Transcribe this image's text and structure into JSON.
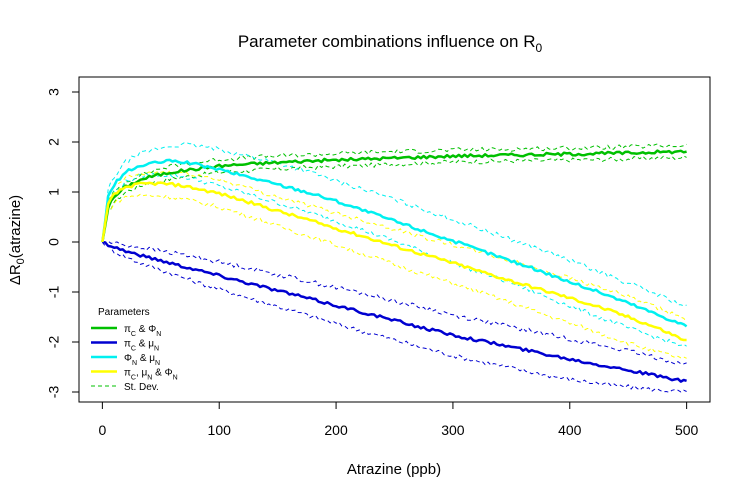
{
  "chart_data": {
    "type": "line",
    "title": "Parameter combinations influence on R",
    "title_subscript": "0",
    "xlabel": "Atrazine (ppb)",
    "ylabel_prefix": "ΔR",
    "ylabel_subscript": "0",
    "ylabel_suffix": "(atrazine)",
    "xlim": [
      -20,
      520
    ],
    "ylim": [
      -3.2,
      3.3
    ],
    "x_ticks": [
      0,
      100,
      200,
      300,
      400,
      500
    ],
    "y_ticks": [
      -3,
      -2,
      -1,
      0,
      1,
      2,
      3
    ],
    "x_tick_labels": [
      "0",
      "100",
      "200",
      "300",
      "400",
      "500"
    ],
    "y_tick_labels": [
      "-3",
      "-2",
      "-1",
      "0",
      "1",
      "2",
      "3"
    ],
    "grid": false,
    "legend": {
      "title": "Parameters",
      "position": "bottom-left",
      "entries": [
        {
          "parts": [
            [
              "π",
              ""
            ],
            [
              "C",
              "sub"
            ],
            [
              " & Φ",
              ""
            ],
            [
              "N",
              "sub"
            ]
          ],
          "color": "#00c000",
          "style": "solid"
        },
        {
          "parts": [
            [
              "π",
              ""
            ],
            [
              "C",
              "sub"
            ],
            [
              " & μ",
              ""
            ],
            [
              "N",
              "sub"
            ]
          ],
          "color": "#0000d0",
          "style": "solid"
        },
        {
          "parts": [
            [
              "Φ",
              ""
            ],
            [
              "N",
              "sub"
            ],
            [
              " & μ",
              ""
            ],
            [
              "N",
              "sub"
            ]
          ],
          "color": "#00f0f0",
          "style": "solid"
        },
        {
          "parts": [
            [
              "π",
              ""
            ],
            [
              "C",
              "sub"
            ],
            [
              ", μ",
              ""
            ],
            [
              "N",
              "sub"
            ],
            [
              " & Φ",
              ""
            ],
            [
              "N",
              "sub"
            ]
          ],
          "color": "#ffff00",
          "style": "solid"
        },
        {
          "parts": [
            [
              "St. Dev.",
              ""
            ]
          ],
          "color": "#00c000",
          "style": "dashed"
        }
      ]
    },
    "x": [
      0,
      5,
      10,
      20,
      30,
      40,
      50,
      60,
      70,
      80,
      100,
      125,
      150,
      175,
      200,
      225,
      250,
      275,
      300,
      325,
      350,
      375,
      400,
      425,
      450,
      475,
      500
    ],
    "series": [
      {
        "name": "πC & ΦN",
        "color": "#00c000",
        "values": [
          0,
          0.7,
          0.9,
          1.1,
          1.22,
          1.3,
          1.35,
          1.4,
          1.43,
          1.46,
          1.52,
          1.56,
          1.59,
          1.62,
          1.64,
          1.66,
          1.68,
          1.7,
          1.72,
          1.73,
          1.74,
          1.75,
          1.76,
          1.77,
          1.78,
          1.8,
          1.81
        ],
        "lower": [
          0,
          0.6,
          0.8,
          1.0,
          1.1,
          1.18,
          1.22,
          1.27,
          1.3,
          1.33,
          1.39,
          1.43,
          1.46,
          1.49,
          1.51,
          1.53,
          1.56,
          1.58,
          1.6,
          1.61,
          1.62,
          1.63,
          1.64,
          1.65,
          1.66,
          1.68,
          1.69
        ],
        "upper": [
          0,
          0.8,
          1.0,
          1.2,
          1.32,
          1.4,
          1.47,
          1.52,
          1.56,
          1.59,
          1.65,
          1.69,
          1.72,
          1.74,
          1.77,
          1.79,
          1.81,
          1.82,
          1.84,
          1.85,
          1.86,
          1.87,
          1.88,
          1.89,
          1.9,
          1.92,
          1.93
        ]
      },
      {
        "name": "πC & μN",
        "color": "#0000d0",
        "values": [
          0,
          -0.05,
          -0.1,
          -0.18,
          -0.25,
          -0.31,
          -0.37,
          -0.43,
          -0.49,
          -0.55,
          -0.67,
          -0.82,
          -0.97,
          -1.12,
          -1.27,
          -1.42,
          -1.57,
          -1.72,
          -1.86,
          -1.98,
          -2.1,
          -2.22,
          -2.34,
          -2.45,
          -2.56,
          -2.68,
          -2.8
        ],
        "lower": [
          0,
          -0.1,
          -0.18,
          -0.3,
          -0.4,
          -0.48,
          -0.56,
          -0.64,
          -0.72,
          -0.8,
          -0.94,
          -1.12,
          -1.29,
          -1.46,
          -1.63,
          -1.8,
          -1.96,
          -2.12,
          -2.27,
          -2.4,
          -2.52,
          -2.64,
          -2.75,
          -2.83,
          -2.9,
          -2.96,
          -3.0
        ],
        "upper": [
          0,
          0.0,
          -0.02,
          -0.06,
          -0.1,
          -0.14,
          -0.18,
          -0.22,
          -0.26,
          -0.3,
          -0.4,
          -0.52,
          -0.65,
          -0.78,
          -0.91,
          -1.04,
          -1.18,
          -1.32,
          -1.46,
          -1.58,
          -1.7,
          -1.82,
          -1.94,
          -2.06,
          -2.18,
          -2.32,
          -2.45
        ]
      },
      {
        "name": "ΦN & μN",
        "color": "#00f0f0",
        "values": [
          0,
          0.9,
          1.15,
          1.4,
          1.5,
          1.56,
          1.6,
          1.62,
          1.6,
          1.55,
          1.45,
          1.3,
          1.15,
          1.0,
          0.82,
          0.62,
          0.42,
          0.22,
          0.02,
          -0.18,
          -0.38,
          -0.58,
          -0.8,
          -1.0,
          -1.22,
          -1.45,
          -1.68
        ],
        "lower": [
          0,
          0.78,
          1.0,
          1.2,
          1.3,
          1.35,
          1.35,
          1.33,
          1.3,
          1.25,
          1.12,
          0.95,
          0.78,
          0.6,
          0.42,
          0.22,
          0.02,
          -0.2,
          -0.42,
          -0.62,
          -0.82,
          -1.05,
          -1.28,
          -1.5,
          -1.72,
          -1.92,
          -2.1
        ],
        "upper": [
          0,
          1.05,
          1.3,
          1.6,
          1.75,
          1.82,
          1.88,
          1.92,
          1.95,
          1.93,
          1.85,
          1.72,
          1.58,
          1.42,
          1.22,
          1.04,
          0.85,
          0.65,
          0.45,
          0.25,
          0.05,
          -0.15,
          -0.37,
          -0.6,
          -0.82,
          -1.05,
          -1.3
        ]
      },
      {
        "name": "πC, μN & ΦN",
        "color": "#ffff00",
        "values": [
          0,
          0.75,
          0.95,
          1.1,
          1.15,
          1.17,
          1.17,
          1.15,
          1.12,
          1.07,
          0.97,
          0.8,
          0.62,
          0.45,
          0.27,
          0.1,
          -0.08,
          -0.25,
          -0.42,
          -0.6,
          -0.78,
          -0.95,
          -1.12,
          -1.3,
          -1.5,
          -1.72,
          -1.98
        ],
        "lower": [
          0,
          0.6,
          0.78,
          0.9,
          0.93,
          0.93,
          0.92,
          0.9,
          0.86,
          0.8,
          0.7,
          0.52,
          0.32,
          0.13,
          -0.06,
          -0.25,
          -0.45,
          -0.64,
          -0.83,
          -1.02,
          -1.22,
          -1.42,
          -1.62,
          -1.82,
          -2.02,
          -2.2,
          -2.35
        ],
        "upper": [
          0,
          0.9,
          1.1,
          1.28,
          1.35,
          1.38,
          1.4,
          1.4,
          1.38,
          1.34,
          1.25,
          1.08,
          0.9,
          0.74,
          0.58,
          0.42,
          0.26,
          0.1,
          -0.06,
          -0.22,
          -0.38,
          -0.55,
          -0.72,
          -0.9,
          -1.1,
          -1.32,
          -1.55
        ]
      }
    ]
  }
}
